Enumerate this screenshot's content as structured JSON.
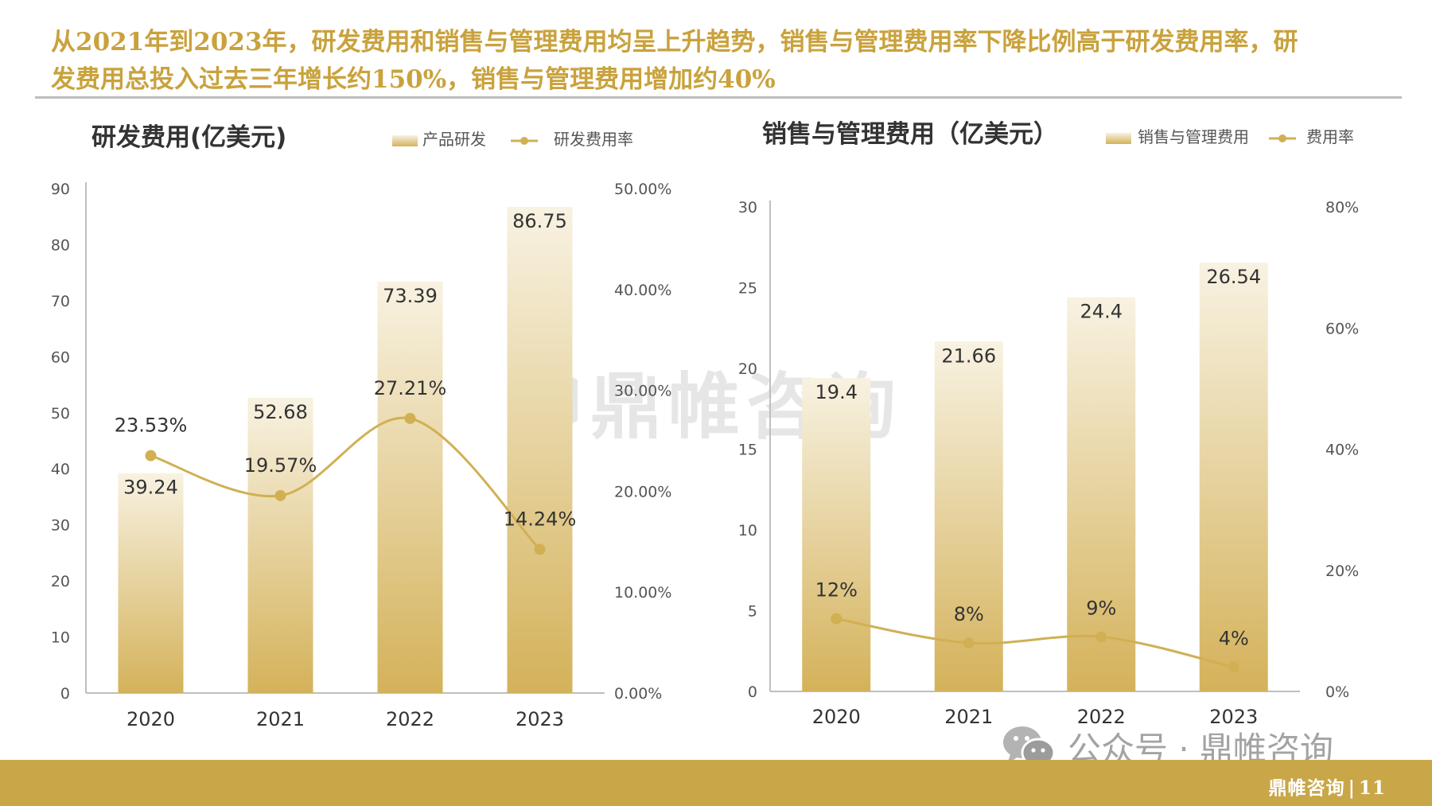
{
  "headline": {
    "line1": "从2021年到2023年，研发费用和销售与管理费用均呈上升趋势，销售与管理费用率下降比例高于研发费用率，研",
    "line2": "发费用总投入过去三年增长约150%，销售与管理费用增加约40%"
  },
  "watermark": {
    "text": "鼎帷咨询",
    "logo": "hexagon-logo-icon"
  },
  "wechat": {
    "icon": "wechat-icon",
    "text": "公众号 · 鼎帷咨询"
  },
  "footer": {
    "brand": "鼎帷咨询",
    "page": "11"
  },
  "colors": {
    "headline": "#c9a23c",
    "bar_top": "#f8f2e2",
    "bar_bottom": "#d4b25a",
    "line": "#d1b053",
    "footer": "#c9a748"
  },
  "chart_data": [
    {
      "type": "bar",
      "title": "研发费用(亿美元)",
      "categories": [
        "2020",
        "2021",
        "2022",
        "2023"
      ],
      "ylim": [
        0,
        90
      ],
      "yticks": [
        "0",
        "10",
        "20",
        "30",
        "40",
        "50",
        "60",
        "70",
        "80",
        "90"
      ],
      "y2lim": [
        0,
        50
      ],
      "y2ticks": [
        "0.00%",
        "10.00%",
        "20.00%",
        "30.00%",
        "40.00%",
        "50.00%"
      ],
      "legend_position": "top-right",
      "series": [
        {
          "name": "产品研发",
          "kind": "bar",
          "values": [
            39.24,
            52.68,
            73.39,
            86.75
          ],
          "labels": [
            "39.24",
            "52.68",
            "73.39",
            "86.75"
          ]
        },
        {
          "name": "研发费用率",
          "kind": "line",
          "axis": "right",
          "values": [
            23.53,
            19.57,
            27.21,
            14.24
          ],
          "labels": [
            "23.53%",
            "19.57%",
            "27.21%",
            "14.24%"
          ]
        }
      ]
    },
    {
      "type": "bar",
      "title": "销售与管理费用（亿美元）",
      "categories": [
        "2020",
        "2021",
        "2022",
        "2023"
      ],
      "ylim": [
        0,
        30
      ],
      "yticks": [
        "0",
        "5",
        "10",
        "15",
        "20",
        "25",
        "30"
      ],
      "y2lim": [
        0,
        80
      ],
      "y2ticks": [
        "0%",
        "20%",
        "40%",
        "60%",
        "80%"
      ],
      "legend_position": "top-right",
      "series": [
        {
          "name": "销售与管理费用",
          "kind": "bar",
          "values": [
            19.4,
            21.66,
            24.4,
            26.54
          ],
          "labels": [
            "19.4",
            "21.66",
            "24.4",
            "26.54"
          ]
        },
        {
          "name": "费用率",
          "kind": "line",
          "axis": "right",
          "values": [
            12,
            8,
            9,
            4
          ],
          "labels": [
            "12%",
            "8%",
            "9%",
            "4%"
          ]
        }
      ]
    }
  ]
}
